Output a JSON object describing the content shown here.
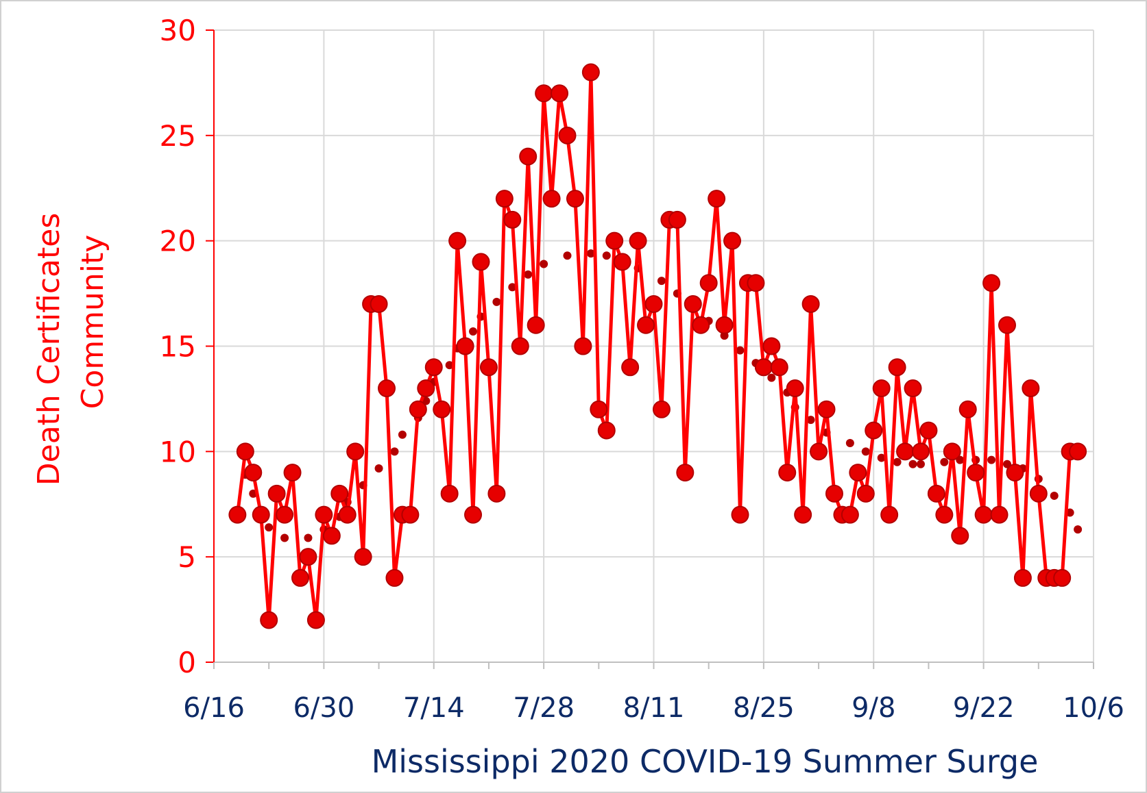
{
  "colors": {
    "series": "#ff0000",
    "marker": "#e60000",
    "marker_edge": "#b30000",
    "average": "#b30000",
    "grid": "#d9d9d9",
    "axis": "#ff0000",
    "xaxis": "#bfbfbf",
    "x_text": "#0d2a66",
    "frame": "#d0d0d0"
  },
  "chart_data": {
    "type": "line",
    "xlabel": "Mississippi 2020 COVID-19 Summer Surge",
    "ylabel_lines": [
      "Death Certificates",
      "Community"
    ],
    "ylim": [
      0,
      30
    ],
    "yticks": [
      "0",
      "5",
      "10",
      "15",
      "20",
      "25",
      "30"
    ],
    "xlim": [
      "2020-06-16",
      "2020-10-06"
    ],
    "xticks": [
      "6/16",
      "6/30",
      "7/14",
      "7/28",
      "8/11",
      "8/25",
      "9/8",
      "9/22",
      "10/6"
    ],
    "grid": true,
    "legend": "none",
    "series": [
      {
        "style": "line-with-markers",
        "x_start": "2020-06-19",
        "x_step_days": 1,
        "values": [
          7,
          10,
          9,
          7,
          2,
          8,
          7,
          9,
          4,
          5,
          2,
          7,
          6,
          8,
          7,
          10,
          5,
          17,
          17,
          13,
          4,
          7,
          7,
          12,
          13,
          14,
          12,
          8,
          20,
          15,
          7,
          19,
          14,
          8,
          22,
          21,
          15,
          24,
          16,
          27,
          22,
          27,
          25,
          22,
          15,
          28,
          12,
          11,
          20,
          19,
          14,
          20,
          16,
          17,
          12,
          21,
          21,
          9,
          17,
          16,
          18,
          22,
          16,
          20,
          7,
          18,
          18,
          14,
          15,
          14,
          9,
          13,
          7,
          17,
          10,
          12,
          8,
          7,
          7,
          9,
          8,
          11,
          13,
          7,
          14,
          10,
          13,
          10,
          11,
          8,
          7,
          10,
          6,
          12,
          9,
          7,
          18,
          7,
          16,
          9,
          4,
          13,
          8,
          4,
          4,
          4,
          10,
          10
        ]
      },
      {
        "style": "dotted-moving-average",
        "x_start": "2020-06-19",
        "x_step_days": 1,
        "values": [
          null,
          8.9,
          8.0,
          7.1,
          6.4,
          null,
          5.9,
          null,
          null,
          5.9,
          null,
          6.3,
          null,
          6.9,
          7.6,
          null,
          8.4,
          null,
          9.2,
          null,
          10.0,
          10.8,
          null,
          11.6,
          12.4,
          13.3,
          null,
          14.1,
          14.9,
          null,
          15.7,
          16.4,
          null,
          17.1,
          null,
          17.8,
          null,
          18.4,
          null,
          18.9,
          null,
          null,
          19.3,
          null,
          null,
          19.4,
          null,
          19.3,
          null,
          19.0,
          null,
          18.7,
          null,
          null,
          18.1,
          null,
          17.5,
          null,
          16.9,
          null,
          16.2,
          null,
          15.5,
          null,
          14.8,
          null,
          14.2,
          null,
          13.5,
          null,
          12.8,
          12.1,
          null,
          11.5,
          null,
          10.9,
          null,
          null,
          10.4,
          null,
          10.0,
          null,
          9.7,
          null,
          9.5,
          null,
          9.4,
          9.4,
          null,
          null,
          9.5,
          null,
          9.6,
          null,
          9.6,
          null,
          9.6,
          null,
          9.4,
          null,
          9.2,
          null,
          8.7,
          null,
          7.9,
          null,
          7.1,
          6.3
        ]
      }
    ]
  }
}
